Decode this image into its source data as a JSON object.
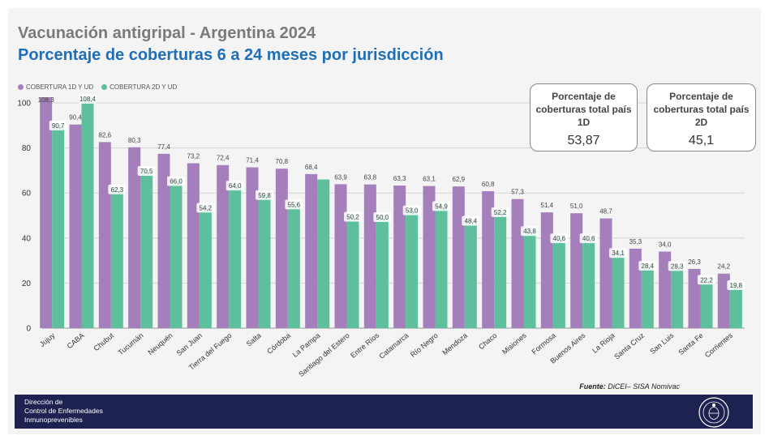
{
  "header": {
    "title": "Vacunación antigripal - Argentina 2024",
    "subtitle": "Porcentaje de coberturas 6 a 24 meses por jurisdicción"
  },
  "kpis": [
    {
      "label": "Porcentaje de coberturas total país 1D",
      "value": "53,87"
    },
    {
      "label": "Porcentaje de coberturas total país 2D",
      "value": "45,1"
    }
  ],
  "source": {
    "prefix": "Fuente:",
    "text": "DiCEI– SISA Nomivac"
  },
  "footer": {
    "line1": "Dirección de",
    "line2": "Control de Enfermedades",
    "line3": "Inmunoprevenibles"
  },
  "colors": {
    "series1": "#a57fbc",
    "series2": "#5dbf9c",
    "footer": "#1e2250",
    "title": "#7a7a7a",
    "subtitle": "#1f6fb8"
  },
  "chart_data": {
    "type": "bar",
    "ylim": [
      0,
      100
    ],
    "yticks": [
      0,
      20,
      40,
      60,
      80,
      100
    ],
    "legend_position": "top-left",
    "categories": [
      "Jujuy",
      "CABA",
      "Chubut",
      "Tucumán",
      "Neuquén",
      "San Juan",
      "Tierra del Fuego",
      "Salta",
      "Córdoba",
      "La Pampa",
      "Santiago del Estero",
      "Entre Ríos",
      "Catamarca",
      "Río Negro",
      "Mendoza",
      "Chaco",
      "Misiones",
      "Formosa",
      "Buenos Aires",
      "La Rioja",
      "Santa Cruz",
      "San Luis",
      "Santa Fe",
      "Corrientes"
    ],
    "series": [
      {
        "name": "COBERTURA 1D Y UD",
        "values": [
          108.3,
          90.4,
          82.6,
          80.3,
          77.4,
          73.2,
          72.4,
          71.4,
          70.8,
          68.4,
          63.9,
          63.8,
          63.3,
          63.1,
          62.9,
          60.8,
          57.3,
          51.4,
          51.0,
          48.7,
          35.3,
          34.0,
          26.3,
          24.2
        ],
        "labels": [
          "108,3",
          "90,4",
          "82,6",
          "80,3",
          "77,4",
          "73,2",
          "72,4",
          "71,4",
          "70,8",
          "68,4",
          "63,9",
          "63,8",
          "63,3",
          "63,1",
          "62,9",
          "60,8",
          "57,3",
          "51,4",
          "51,0",
          "48,7",
          "35,3",
          "34,0",
          "26,3",
          "24,2"
        ]
      },
      {
        "name": "COBERTURA 2D Y UD",
        "values": [
          90.7,
          108.4,
          62.3,
          70.5,
          66.0,
          54.2,
          64.0,
          59.8,
          55.6,
          66.0,
          50.2,
          50.0,
          53.0,
          54.9,
          48.4,
          52.2,
          43.8,
          40.6,
          40.6,
          34.1,
          28.4,
          28.3,
          22.2,
          19.8
        ],
        "labels": [
          "90,7",
          "108,4",
          "62,3",
          "70,5",
          "66,0",
          "54,2",
          "64,0",
          "59,8",
          "55,6",
          "",
          "50,2",
          "50,0",
          "53,0",
          "54,9",
          "48,4",
          "52,2",
          "43,8",
          "40,6",
          "40,6",
          "34,1",
          "28,4",
          "28,3",
          "22,2",
          "19,8"
        ]
      }
    ]
  }
}
